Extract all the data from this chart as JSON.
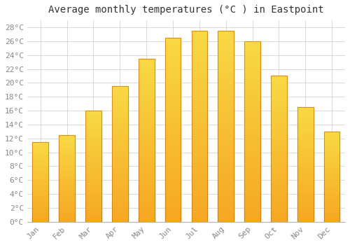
{
  "title": "Average monthly temperatures (°C ) in Eastpoint",
  "months": [
    "Jan",
    "Feb",
    "Mar",
    "Apr",
    "May",
    "Jun",
    "Jul",
    "Aug",
    "Sep",
    "Oct",
    "Nov",
    "Dec"
  ],
  "values": [
    11.5,
    12.5,
    16.0,
    19.5,
    23.5,
    26.5,
    27.5,
    27.5,
    26.0,
    21.0,
    16.5,
    13.0
  ],
  "bar_color_main": "#F5A623",
  "bar_color_top": "#FFD966",
  "bar_edge_color": "#C87000",
  "background_color": "#FFFFFF",
  "plot_bg_color": "#FFFFFF",
  "grid_color": "#CCCCCC",
  "ylim": [
    0,
    29
  ],
  "ytick_max": 28,
  "ytick_step": 2,
  "title_fontsize": 10,
  "tick_fontsize": 8,
  "tick_color": "#888888",
  "title_color": "#333333"
}
